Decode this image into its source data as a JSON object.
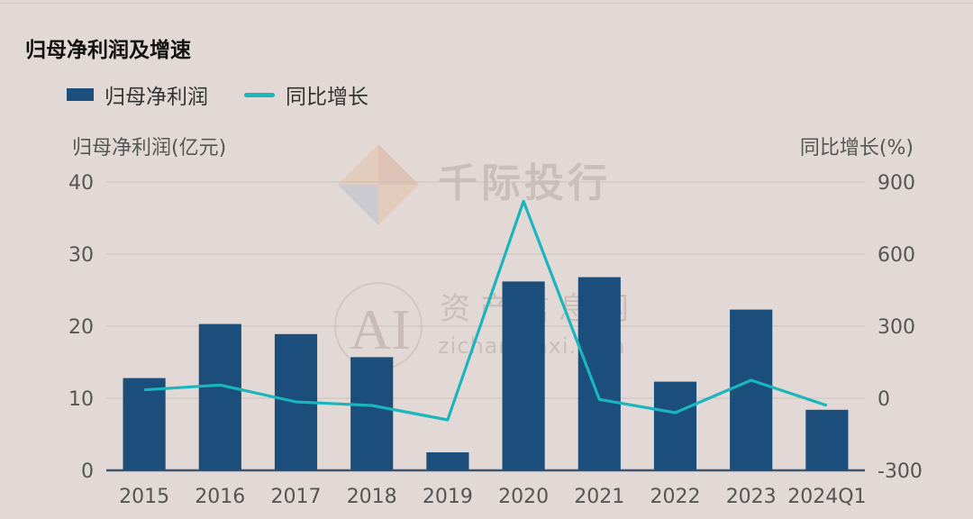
{
  "chart_data": {
    "type": "bar",
    "title": "归母净利润及增速",
    "categories": [
      "2015",
      "2016",
      "2017",
      "2018",
      "2019",
      "2020",
      "2021",
      "2022",
      "2023",
      "2024Q1"
    ],
    "series": [
      {
        "name": "归母净利润",
        "type": "bar",
        "axis": "left",
        "color": "#1b4e7a",
        "values": [
          12.8,
          20.3,
          18.9,
          15.7,
          2.5,
          26.2,
          26.8,
          12.3,
          22.3,
          8.4
        ]
      },
      {
        "name": "同比增长",
        "type": "line",
        "axis": "right",
        "color": "#1ab5bd",
        "values": [
          35,
          55,
          -15,
          -30,
          -90,
          820,
          -5,
          -60,
          75,
          -30
        ]
      }
    ],
    "ylabel_left": "归母净利润(亿元)",
    "ylabel_right": "同比增长(%)",
    "ylim_left": [
      0,
      40
    ],
    "ylim_right": [
      -300,
      900
    ],
    "yticks_left": [
      "0",
      "10",
      "20",
      "30",
      "40"
    ],
    "yticks_right": [
      "-300",
      "0",
      "300",
      "600",
      "900"
    ],
    "grid": true,
    "legend_position": "top-left"
  },
  "watermark": {
    "brand_text": "千际投行",
    "cn_text": "资产信息网",
    "url_text": "zichanxinxi.com",
    "logo_text": "AI"
  }
}
